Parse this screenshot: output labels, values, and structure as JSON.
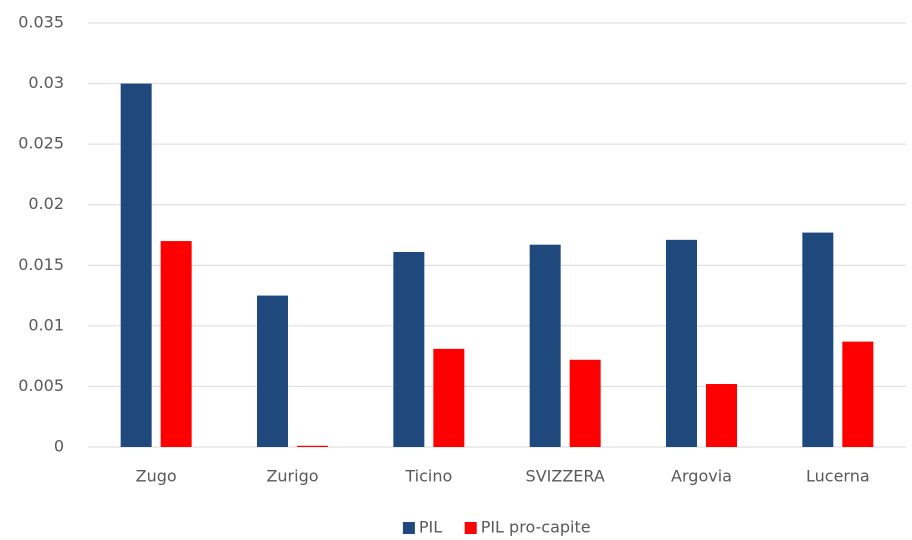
{
  "chart_data": {
    "type": "bar",
    "categories": [
      "Zugo",
      "Zurigo",
      "Ticino",
      "SVIZZERA",
      "Argovia",
      "Lucerna"
    ],
    "series": [
      {
        "name": "PIL",
        "color": "#1f497d",
        "values": [
          0.03,
          0.0125,
          0.0161,
          0.0167,
          0.0171,
          0.0177
        ]
      },
      {
        "name": "PIL pro-capite",
        "color": "#ff0000",
        "values": [
          0.017,
          0.0001,
          0.0081,
          0.0072,
          0.0052,
          0.0087
        ]
      }
    ],
    "ylim": [
      0,
      0.035
    ],
    "yticks": [
      0,
      0.005,
      0.01,
      0.015,
      0.02,
      0.025,
      0.03,
      0.035
    ],
    "grid": true,
    "legend": "bottom"
  }
}
